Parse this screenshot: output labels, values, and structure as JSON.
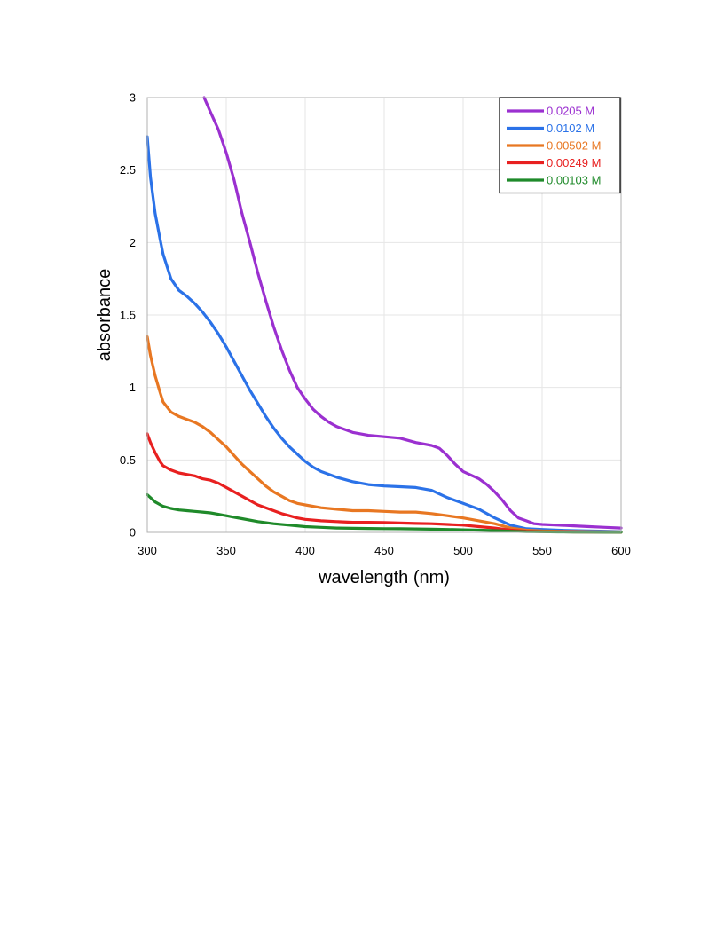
{
  "chart_data": {
    "type": "line",
    "title": "",
    "xlabel": "wavelength (nm)",
    "ylabel": "absorbance",
    "xlim": [
      300,
      600
    ],
    "ylim": [
      0,
      3
    ],
    "x_ticks": [
      "300",
      "350",
      "400",
      "450",
      "500",
      "550",
      "600"
    ],
    "y_ticks": [
      "0",
      "0.5",
      "1",
      "1.5",
      "2",
      "2.5",
      "3"
    ],
    "grid": true,
    "legend_position": "top-right",
    "series": [
      {
        "name": "0.0205 M",
        "color": "#9b30d0",
        "x": [
          336,
          340,
          345,
          350,
          355,
          360,
          365,
          370,
          375,
          380,
          385,
          390,
          395,
          400,
          405,
          410,
          415,
          420,
          425,
          430,
          440,
          450,
          460,
          470,
          480,
          485,
          490,
          495,
          500,
          510,
          515,
          520,
          525,
          530,
          535,
          540,
          545,
          550,
          560,
          570,
          580,
          590,
          600
        ],
        "y": [
          3.0,
          2.9,
          2.78,
          2.62,
          2.43,
          2.2,
          2.0,
          1.79,
          1.6,
          1.42,
          1.26,
          1.12,
          1.0,
          0.92,
          0.85,
          0.8,
          0.76,
          0.73,
          0.71,
          0.69,
          0.67,
          0.66,
          0.65,
          0.62,
          0.6,
          0.58,
          0.53,
          0.47,
          0.42,
          0.37,
          0.33,
          0.28,
          0.22,
          0.15,
          0.1,
          0.08,
          0.06,
          0.055,
          0.05,
          0.045,
          0.04,
          0.035,
          0.03
        ]
      },
      {
        "name": "0.0102 M",
        "color": "#2b72e8",
        "x": [
          300,
          302,
          305,
          308,
          310,
          315,
          320,
          325,
          330,
          335,
          340,
          345,
          350,
          355,
          360,
          365,
          370,
          375,
          380,
          385,
          390,
          395,
          400,
          405,
          410,
          420,
          430,
          440,
          450,
          460,
          470,
          480,
          490,
          500,
          510,
          520,
          530,
          540,
          550,
          560,
          570,
          580,
          590,
          600
        ],
        "y": [
          2.73,
          2.45,
          2.2,
          2.03,
          1.92,
          1.75,
          1.67,
          1.63,
          1.58,
          1.52,
          1.45,
          1.37,
          1.28,
          1.18,
          1.08,
          0.98,
          0.89,
          0.8,
          0.72,
          0.65,
          0.59,
          0.54,
          0.49,
          0.45,
          0.42,
          0.38,
          0.35,
          0.33,
          0.32,
          0.315,
          0.31,
          0.29,
          0.24,
          0.2,
          0.16,
          0.1,
          0.05,
          0.025,
          0.02,
          0.015,
          0.012,
          0.01,
          0.008,
          0.005
        ]
      },
      {
        "name": "0.00502 M",
        "color": "#e87722",
        "x": [
          300,
          302,
          305,
          308,
          310,
          315,
          320,
          325,
          330,
          335,
          340,
          345,
          350,
          355,
          360,
          365,
          370,
          375,
          380,
          385,
          390,
          395,
          400,
          410,
          420,
          430,
          440,
          450,
          460,
          470,
          480,
          490,
          500,
          510,
          520,
          530,
          540,
          550,
          560,
          570,
          580,
          590,
          600
        ],
        "y": [
          1.35,
          1.22,
          1.08,
          0.97,
          0.9,
          0.83,
          0.8,
          0.78,
          0.76,
          0.73,
          0.69,
          0.64,
          0.59,
          0.53,
          0.47,
          0.42,
          0.37,
          0.32,
          0.28,
          0.25,
          0.22,
          0.2,
          0.19,
          0.17,
          0.16,
          0.15,
          0.15,
          0.145,
          0.14,
          0.14,
          0.13,
          0.115,
          0.1,
          0.08,
          0.06,
          0.03,
          0.015,
          0.01,
          0.008,
          0.006,
          0.005,
          0.004,
          0.003
        ]
      },
      {
        "name": "0.00249 M",
        "color": "#e82020",
        "x": [
          300,
          302,
          305,
          308,
          310,
          315,
          320,
          325,
          330,
          335,
          340,
          345,
          350,
          355,
          360,
          365,
          370,
          375,
          380,
          385,
          390,
          395,
          400,
          410,
          420,
          430,
          440,
          450,
          460,
          470,
          480,
          490,
          500,
          510,
          520,
          530,
          540,
          550,
          560,
          570,
          580,
          590,
          600
        ],
        "y": [
          0.68,
          0.62,
          0.55,
          0.49,
          0.46,
          0.43,
          0.41,
          0.4,
          0.39,
          0.37,
          0.36,
          0.34,
          0.31,
          0.28,
          0.25,
          0.22,
          0.19,
          0.17,
          0.15,
          0.13,
          0.115,
          0.1,
          0.09,
          0.08,
          0.075,
          0.07,
          0.07,
          0.068,
          0.065,
          0.062,
          0.06,
          0.055,
          0.05,
          0.04,
          0.03,
          0.015,
          0.008,
          0.005,
          0.004,
          0.003,
          0.002,
          0.002,
          0.001
        ]
      },
      {
        "name": "0.00103 M",
        "color": "#1f8a2a",
        "x": [
          300,
          302,
          305,
          310,
          315,
          320,
          325,
          330,
          335,
          340,
          345,
          350,
          355,
          360,
          370,
          380,
          390,
          400,
          410,
          420,
          430,
          440,
          450,
          460,
          470,
          480,
          490,
          500,
          510,
          520,
          530,
          540,
          550,
          560,
          570,
          580,
          590,
          600
        ],
        "y": [
          0.26,
          0.24,
          0.21,
          0.18,
          0.165,
          0.155,
          0.15,
          0.145,
          0.14,
          0.135,
          0.125,
          0.115,
          0.105,
          0.095,
          0.075,
          0.06,
          0.05,
          0.04,
          0.035,
          0.03,
          0.028,
          0.027,
          0.026,
          0.025,
          0.024,
          0.022,
          0.02,
          0.018,
          0.015,
          0.012,
          0.008,
          0.005,
          0.004,
          0.003,
          0.002,
          0.002,
          0.001,
          0.001
        ]
      }
    ]
  }
}
